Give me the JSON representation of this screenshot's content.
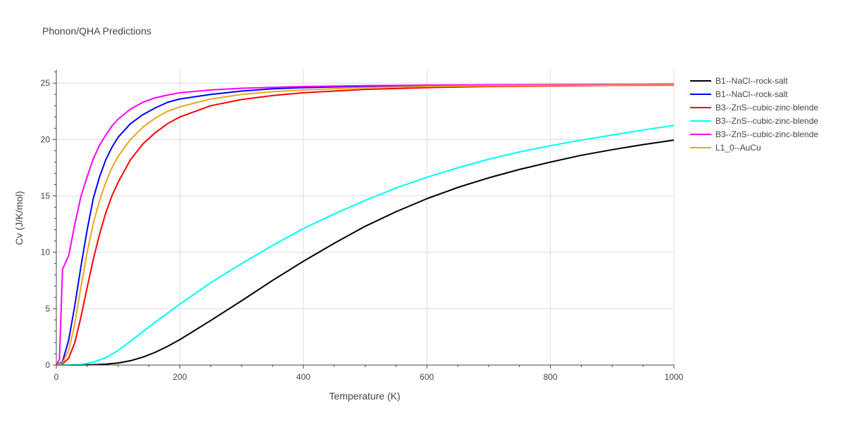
{
  "chart_data": {
    "type": "line",
    "title": "Phonon/QHA Predictions",
    "xlabel": "Temperature (K)",
    "ylabel": "Cv (J/K/mol)",
    "xlim": [
      0,
      1000
    ],
    "ylim": [
      0,
      26.2
    ],
    "xticks": [
      0,
      200,
      400,
      600,
      800,
      1000
    ],
    "yticks": [
      0,
      5,
      10,
      15,
      20,
      25
    ],
    "grid": true,
    "legend_position": "right",
    "series": [
      {
        "name": "B1--NaCl--rock-salt",
        "color": "#000000",
        "x": [
          0,
          20,
          40,
          60,
          80,
          100,
          120,
          140,
          160,
          180,
          200,
          250,
          300,
          350,
          400,
          450,
          500,
          550,
          600,
          650,
          700,
          750,
          800,
          850,
          900,
          950,
          1000
        ],
        "y": [
          0,
          0,
          0.01,
          0.03,
          0.08,
          0.18,
          0.38,
          0.7,
          1.12,
          1.65,
          2.25,
          3.95,
          5.7,
          7.5,
          9.2,
          10.8,
          12.3,
          13.6,
          14.75,
          15.75,
          16.6,
          17.35,
          18.0,
          18.6,
          19.1,
          19.55,
          19.95
        ]
      },
      {
        "name": "B1--NaCl--rock-salt",
        "color": "#0000ff",
        "x": [
          0,
          10,
          20,
          30,
          40,
          50,
          60,
          70,
          80,
          90,
          100,
          120,
          140,
          160,
          180,
          200,
          250,
          300,
          350,
          400,
          500,
          600,
          700,
          800,
          900,
          1000
        ],
        "y": [
          0,
          0.3,
          2.2,
          5.3,
          8.8,
          12.0,
          14.8,
          16.7,
          18.2,
          19.3,
          20.2,
          21.4,
          22.2,
          22.8,
          23.3,
          23.6,
          24.0,
          24.3,
          24.5,
          24.6,
          24.72,
          24.8,
          24.83,
          24.86,
          24.88,
          24.9
        ]
      },
      {
        "name": "B3--ZnS--cubic-zinc-blende",
        "color": "#ff0000",
        "x": [
          0,
          10,
          20,
          30,
          40,
          50,
          60,
          70,
          80,
          90,
          100,
          120,
          140,
          160,
          180,
          200,
          250,
          300,
          350,
          400,
          500,
          600,
          700,
          800,
          900,
          1000
        ],
        "y": [
          0,
          0.1,
          0.6,
          2.0,
          4.3,
          6.9,
          9.4,
          11.6,
          13.5,
          15.0,
          16.2,
          18.2,
          19.6,
          20.6,
          21.4,
          22.0,
          23.0,
          23.55,
          23.9,
          24.15,
          24.45,
          24.6,
          24.7,
          24.75,
          24.8,
          24.82
        ]
      },
      {
        "name": "B3--ZnS--cubic-zinc-blende",
        "color": "#00ffff",
        "x": [
          0,
          20,
          40,
          60,
          80,
          100,
          120,
          140,
          160,
          180,
          200,
          250,
          300,
          350,
          400,
          450,
          500,
          550,
          600,
          650,
          700,
          750,
          800,
          850,
          900,
          950,
          1000
        ],
        "y": [
          0,
          0,
          0.05,
          0.25,
          0.65,
          1.3,
          2.1,
          2.95,
          3.8,
          4.6,
          5.4,
          7.3,
          9.0,
          10.6,
          12.1,
          13.4,
          14.6,
          15.7,
          16.65,
          17.5,
          18.25,
          18.9,
          19.45,
          19.95,
          20.4,
          20.85,
          21.25
        ]
      },
      {
        "name": "B3--ZnS--cubic-zinc-blende",
        "color": "#ff00ff",
        "x": [
          0,
          5,
          10,
          20,
          30,
          40,
          50,
          60,
          70,
          80,
          90,
          100,
          120,
          140,
          160,
          180,
          200,
          250,
          300,
          400,
          500,
          600,
          800,
          1000
        ],
        "y": [
          0,
          0.5,
          8.5,
          9.7,
          12.5,
          15.0,
          16.7,
          18.3,
          19.5,
          20.4,
          21.2,
          21.8,
          22.7,
          23.3,
          23.7,
          23.95,
          24.15,
          24.4,
          24.55,
          24.7,
          24.78,
          24.83,
          24.87,
          24.9
        ]
      },
      {
        "name": "L1_0--AuCu",
        "color": "#e6a817",
        "x": [
          0,
          10,
          20,
          30,
          40,
          50,
          60,
          70,
          80,
          90,
          100,
          120,
          140,
          160,
          180,
          200,
          250,
          300,
          350,
          400,
          500,
          600,
          700,
          800,
          900,
          1000
        ],
        "y": [
          0,
          0.2,
          1.3,
          3.7,
          7.0,
          10.0,
          12.6,
          14.6,
          16.2,
          17.5,
          18.5,
          20.0,
          21.1,
          21.9,
          22.5,
          22.9,
          23.6,
          24.0,
          24.25,
          24.4,
          24.6,
          24.7,
          24.76,
          24.8,
          24.83,
          24.85
        ]
      }
    ]
  }
}
